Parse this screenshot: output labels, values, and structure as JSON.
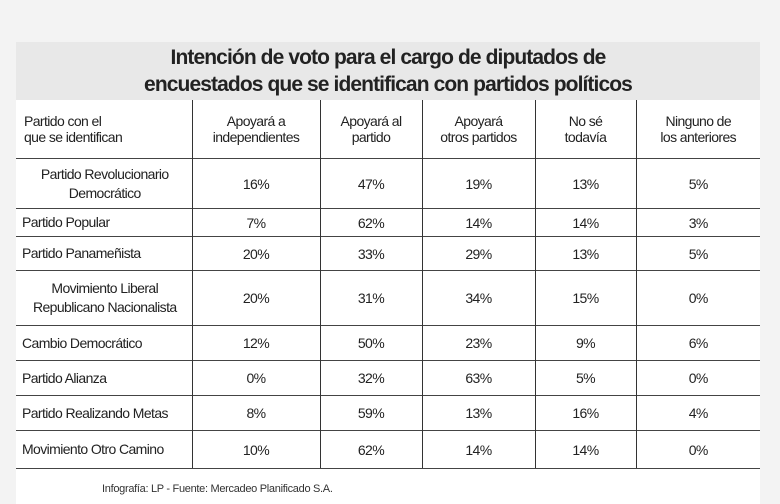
{
  "chart_data": {
    "type": "table",
    "title": "Intención de voto para el cargo de diputados de encuestados que se identifican con partidos políticos",
    "title_lines": [
      "Intención de voto para el cargo de diputados de",
      "encuestados que se identifican con partidos políticos"
    ],
    "columns": [
      [
        "Partido con el",
        "que se identifican"
      ],
      [
        "Apoyará a",
        "independientes"
      ],
      [
        "Apoyará al",
        "partido"
      ],
      [
        "Apoyará",
        "otros partidos"
      ],
      [
        "No sé",
        "todavía"
      ],
      [
        "Ninguno de",
        "los anteriores"
      ]
    ],
    "rows": [
      {
        "party": "Partido Revolucionario Democrático",
        "values": [
          "16%",
          "47%",
          "19%",
          "13%",
          "5%"
        ]
      },
      {
        "party": "Partido Popular",
        "values": [
          "7%",
          "62%",
          "14%",
          "14%",
          "3%"
        ]
      },
      {
        "party": "Partido Panameñista",
        "values": [
          "20%",
          "33%",
          "29%",
          "13%",
          "5%"
        ]
      },
      {
        "party": "Movimiento Liberal Republicano Nacionalista",
        "values": [
          "20%",
          "31%",
          "34%",
          "15%",
          "0%"
        ]
      },
      {
        "party": "Cambio Democrático",
        "values": [
          "12%",
          "50%",
          "23%",
          "9%",
          "6%"
        ]
      },
      {
        "party": "Partido Alianza",
        "values": [
          "0%",
          "32%",
          "63%",
          "5%",
          "0%"
        ]
      },
      {
        "party": "Partido Realizando Metas",
        "values": [
          "8%",
          "59%",
          "13%",
          "16%",
          "4%"
        ]
      },
      {
        "party": "Movimiento Otro Camino",
        "values": [
          "10%",
          "62%",
          "14%",
          "14%",
          "0%"
        ]
      }
    ],
    "footer": "Infografía: LP - Fuente: Mercadeo Planificado S.A."
  },
  "colors": {
    "title_band": "#e8e8e8",
    "background": "#f3f3f3",
    "panel": "#ffffff",
    "text": "#222222"
  }
}
